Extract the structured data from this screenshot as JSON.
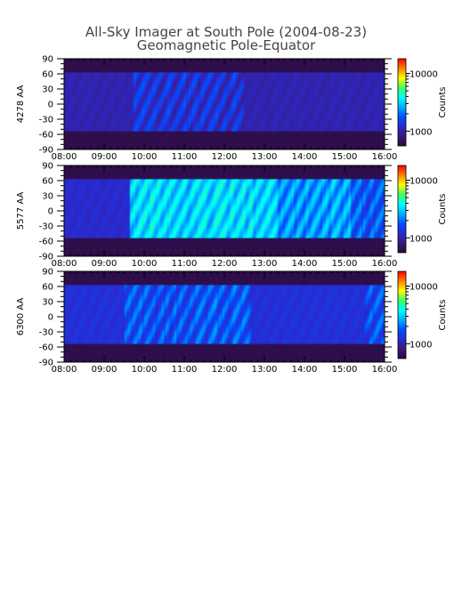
{
  "title": "All-Sky Imager at South Pole (2004-08-23)",
  "subtitle": "Geomagnetic Pole-Equator",
  "colorscale": {
    "stops": [
      "#2a0a3a",
      "#3a1a7a",
      "#2a2ad0",
      "#0050ff",
      "#00b0ff",
      "#00ffff",
      "#40ff60",
      "#ffff00",
      "#ff8000",
      "#ff0000"
    ],
    "colorbar_label": "Counts"
  },
  "chart_data": [
    {
      "type": "heatmap",
      "ylabel": "4278 AA",
      "x_ticks": [
        "08:00",
        "09:00",
        "10:00",
        "11:00",
        "12:00",
        "13:00",
        "14:00",
        "15:00",
        "16:00"
      ],
      "y_ticks": [
        "90",
        "60",
        "30",
        "0",
        "-30",
        "-60",
        "-90"
      ],
      "xlim": [
        "08:00",
        "16:00"
      ],
      "ylim": [
        -90,
        90
      ],
      "colorbar_ticks": [
        "10000",
        "1000"
      ],
      "colorbar_label": "Counts",
      "valid_lat_range": [
        -55,
        62
      ],
      "base_level": 0.18,
      "activity": [
        {
          "start": "09:45",
          "end": "12:30",
          "level": 0.24
        }
      ]
    },
    {
      "type": "heatmap",
      "ylabel": "5577 AA",
      "x_ticks": [
        "08:00",
        "09:00",
        "10:00",
        "11:00",
        "12:00",
        "13:00",
        "14:00",
        "15:00",
        "16:00"
      ],
      "y_ticks": [
        "90",
        "60",
        "30",
        "0",
        "-30",
        "-60",
        "-90"
      ],
      "xlim": [
        "08:00",
        "16:00"
      ],
      "ylim": [
        -90,
        90
      ],
      "colorbar_ticks": [
        "10000",
        "1000"
      ],
      "colorbar_label": "Counts",
      "valid_lat_range": [
        -55,
        62
      ],
      "base_level": 0.22,
      "activity": [
        {
          "start": "09:40",
          "end": "13:20",
          "level": 0.5
        },
        {
          "start": "13:20",
          "end": "15:10",
          "level": 0.42
        },
        {
          "start": "15:10",
          "end": "16:00",
          "level": 0.33
        }
      ]
    },
    {
      "type": "heatmap",
      "ylabel": "6300 AA",
      "x_ticks": [
        "08:00",
        "09:00",
        "10:00",
        "11:00",
        "12:00",
        "13:00",
        "14:00",
        "15:00",
        "16:00"
      ],
      "y_ticks": [
        "90",
        "60",
        "30",
        "0",
        "-30",
        "-60",
        "-90"
      ],
      "xlim": [
        "08:00",
        "16:00"
      ],
      "ylim": [
        -90,
        90
      ],
      "colorbar_ticks": [
        "10000",
        "1000"
      ],
      "colorbar_label": "Counts",
      "valid_lat_range": [
        -55,
        62
      ],
      "base_level": 0.24,
      "activity": [
        {
          "start": "09:30",
          "end": "12:40",
          "level": 0.32
        },
        {
          "start": "15:30",
          "end": "16:00",
          "level": 0.31
        }
      ]
    }
  ]
}
